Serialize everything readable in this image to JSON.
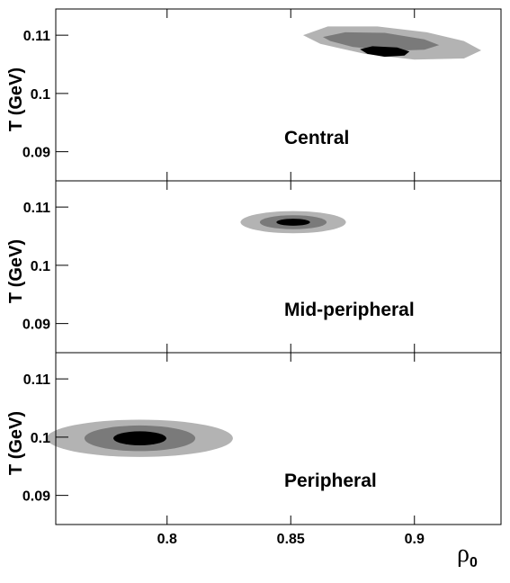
{
  "chart_data": {
    "type": "contour",
    "x_axis": {
      "label_symbol": "ρ",
      "label_subscript": "0",
      "range": [
        0.755,
        0.935
      ],
      "ticks": [
        0.8,
        0.85,
        0.9
      ],
      "tick_labels": [
        "0.8",
        "0.85",
        "0.9"
      ]
    },
    "y_axis": {
      "label": "T (GeV)",
      "range": [
        0.085,
        0.1145
      ],
      "ticks": [
        0.09,
        0.1,
        0.11
      ],
      "tick_labels": [
        "0.09",
        "0.1",
        "0.11"
      ]
    },
    "grid": false,
    "contour_colors": [
      "#b3b3b3",
      "#7a7a7a",
      "#000000"
    ],
    "panels": [
      {
        "label": "Central",
        "levels": [
          {
            "polygon": [
              [
                0.855,
                0.11
              ],
              [
                0.865,
                0.1115
              ],
              [
                0.885,
                0.1115
              ],
              [
                0.905,
                0.1105
              ],
              [
                0.92,
                0.109
              ],
              [
                0.927,
                0.1074
              ],
              [
                0.92,
                0.106
              ],
              [
                0.9,
                0.1058
              ],
              [
                0.88,
                0.1068
              ],
              [
                0.862,
                0.1085
              ]
            ]
          },
          {
            "polygon": [
              [
                0.863,
                0.1097
              ],
              [
                0.872,
                0.1105
              ],
              [
                0.888,
                0.1104
              ],
              [
                0.904,
                0.1093
              ],
              [
                0.91,
                0.1083
              ],
              [
                0.904,
                0.1075
              ],
              [
                0.89,
                0.1073
              ],
              [
                0.875,
                0.108
              ],
              [
                0.866,
                0.109
              ]
            ]
          },
          {
            "polygon": [
              [
                0.878,
                0.1076
              ],
              [
                0.883,
                0.1081
              ],
              [
                0.893,
                0.1079
              ],
              [
                0.898,
                0.1072
              ],
              [
                0.896,
                0.1065
              ],
              [
                0.888,
                0.1063
              ],
              [
                0.881,
                0.1068
              ]
            ]
          }
        ]
      },
      {
        "label": "Mid-peripheral",
        "levels": [
          {
            "ellipse": {
              "cx": 0.851,
              "cy": 0.1074,
              "rx": 0.0213,
              "ry": 0.0019
            }
          },
          {
            "ellipse": {
              "cx": 0.851,
              "cy": 0.1074,
              "rx": 0.0135,
              "ry": 0.0012
            }
          },
          {
            "ellipse": {
              "cx": 0.851,
              "cy": 0.1074,
              "rx": 0.0068,
              "ry": 0.0006
            }
          }
        ]
      },
      {
        "label": "Peripheral",
        "levels": [
          {
            "ellipse": {
              "cx": 0.789,
              "cy": 0.0998,
              "rx": 0.0376,
              "ry": 0.0032
            }
          },
          {
            "ellipse": {
              "cx": 0.789,
              "cy": 0.0998,
              "rx": 0.0224,
              "ry": 0.0022
            }
          },
          {
            "ellipse": {
              "cx": 0.789,
              "cy": 0.0998,
              "rx": 0.0107,
              "ry": 0.0012
            }
          }
        ]
      }
    ]
  }
}
